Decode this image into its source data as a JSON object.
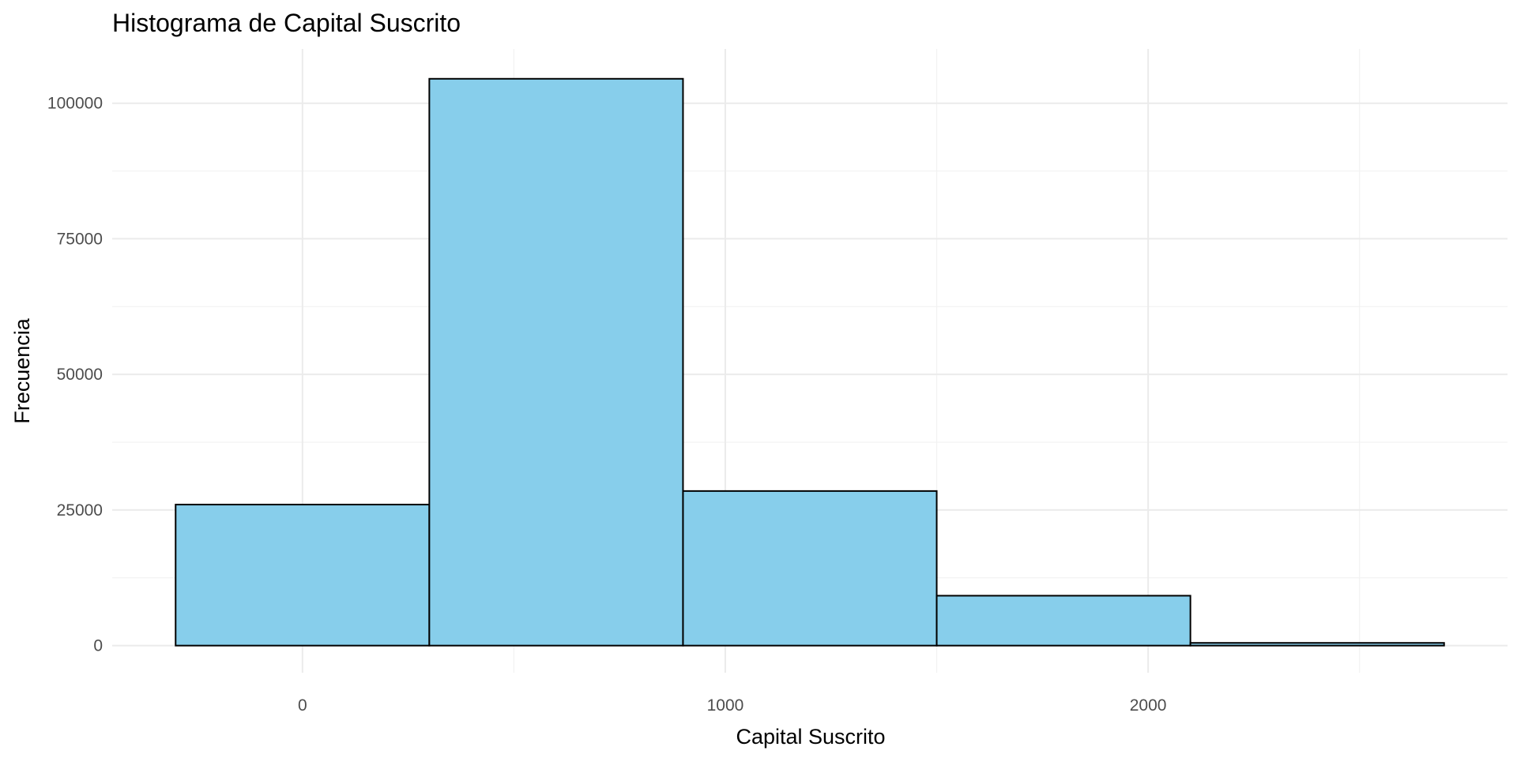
{
  "chart_data": {
    "type": "bar",
    "subtype": "histogram",
    "title": "Histograma de Capital Suscrito",
    "xlabel": "Capital Suscrito",
    "ylabel": "Frecuencia",
    "bins": [
      {
        "x0": -300,
        "x1": 300,
        "count": 26000
      },
      {
        "x0": 300,
        "x1": 900,
        "count": 104500
      },
      {
        "x0": 900,
        "x1": 1500,
        "count": 28500
      },
      {
        "x0": 1500,
        "x1": 2100,
        "count": 9200
      },
      {
        "x0": 2100,
        "x1": 2700,
        "count": 500
      }
    ],
    "xlim": [
      -450,
      2850
    ],
    "ylim": [
      -5000,
      110000
    ],
    "xticks": [
      0,
      1000,
      2000
    ],
    "xtick_labels": [
      "0",
      "1000",
      "2000"
    ],
    "xminor": [
      500,
      1500,
      2500
    ],
    "yticks": [
      0,
      25000,
      50000,
      75000,
      100000
    ],
    "ytick_labels": [
      "0",
      "25000",
      "50000",
      "75000",
      "100000"
    ],
    "yminor": [
      12500,
      37500,
      62500,
      87500
    ],
    "bar_fill": "#87ceeb",
    "bar_edge": "#000000",
    "grid": true,
    "legend": "none"
  }
}
